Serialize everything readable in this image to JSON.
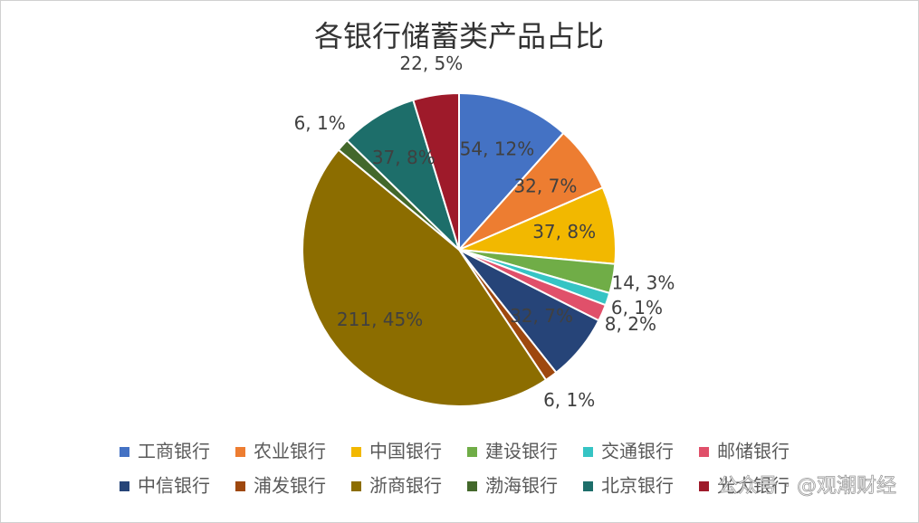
{
  "chart_data": {
    "type": "pie",
    "title": "各银行储蓄类产品占比",
    "categories": [
      "工商银行",
      "农业银行",
      "中国银行",
      "建设银行",
      "交通银行",
      "邮储银行",
      "中信银行",
      "浦发银行",
      "浙商银行",
      "渤海银行",
      "北京银行",
      "光大银行"
    ],
    "values": [
      54,
      32,
      37,
      14,
      6,
      8,
      32,
      6,
      211,
      6,
      37,
      22
    ],
    "value_labels": [
      "54, 12%",
      "32, 7%",
      "37, 8%",
      "14, 3%",
      "6, 1%",
      "8, 2%",
      "32, 7%",
      "6, 1%",
      "211, 45%",
      "6, 1%",
      "37, 8%",
      "22, 5%"
    ],
    "colors": [
      "#4472c4",
      "#ed7d31",
      "#f2b800",
      "#70ad47",
      "#36c4c4",
      "#e0506a",
      "#264478",
      "#9e480e",
      "#8c6d00",
      "#43682b",
      "#1d6e6a",
      "#9e1a2a"
    ],
    "legend": "bottom",
    "watermark": "公众号 · @观潮财经"
  }
}
